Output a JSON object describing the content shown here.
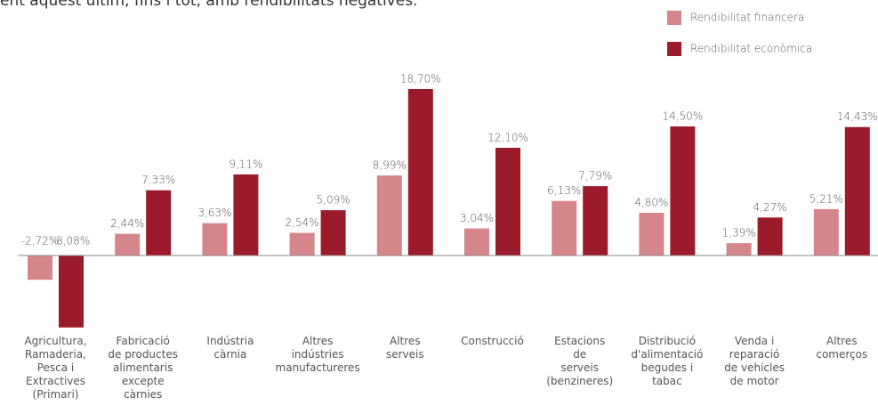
{
  "chart_data": {
    "type": "bar",
    "intro_text": "ent aquest últim, fins i tot, amb rendibilitats negatives.",
    "categories": [
      "Agricultura,\nRamaderia,\nPesca i\nExtractives\n(Primari)",
      "Fabricació\nde productes\nalimentaris\nexcepte\ncàrnies",
      "Indústria\ncàrnia",
      "Altres\nindústries\nmanufactureres",
      "Altres\nserveis",
      "Construcció",
      "Estacions\nde\nserveis\n(benzineres)",
      "Distribució\nd'alimentació\nbegudes i\ntabac",
      "Venda i\nreparació\nde vehicles\nde motor",
      "Altres\ncomerços"
    ],
    "series": [
      {
        "name": "Rendibilitat financera",
        "color": "#d4868b",
        "values": [
          -2.72,
          2.44,
          3.63,
          2.54,
          8.99,
          3.04,
          6.13,
          4.8,
          1.39,
          5.21
        ],
        "value_labels": [
          "-2,72%",
          "2,44%",
          "3,63%",
          "2,54%",
          "8,99%",
          "3,04%",
          "6,13%",
          "4,80%",
          "1,39%",
          "5,21%"
        ]
      },
      {
        "name": "Rendibilitat econòmica",
        "color": "#9b1b2a",
        "values": [
          -8.08,
          7.33,
          9.11,
          5.09,
          18.7,
          12.1,
          7.79,
          14.5,
          4.27,
          14.43
        ],
        "value_labels": [
          "-8,08%",
          "7,33%",
          "9,11%",
          "5,09%",
          "18,70%",
          "12,10%",
          "7,79%",
          "14,50%",
          "4,27%",
          "14,43%"
        ]
      }
    ],
    "ylim": [
      -8.5,
      20
    ]
  }
}
